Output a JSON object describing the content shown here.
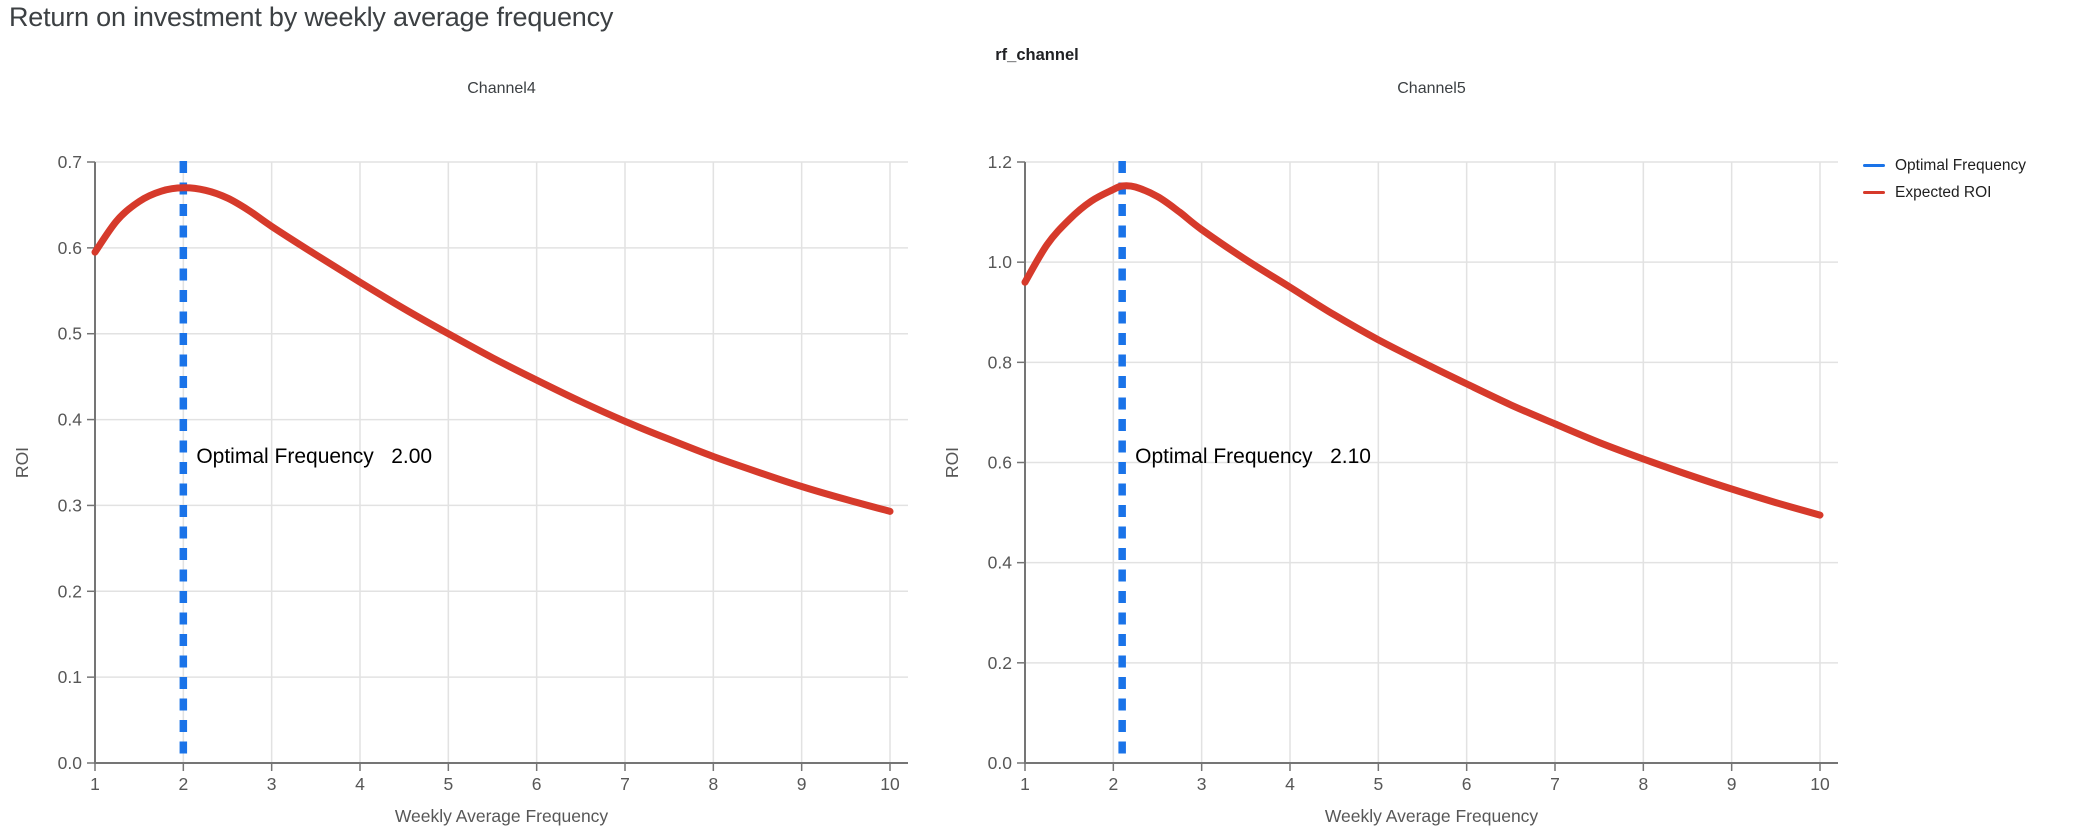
{
  "page": {
    "title": "Return on investment by weekly average frequency",
    "figure_title": "rf_channel"
  },
  "colors": {
    "expected_roi": "#d63a2b",
    "optimal_frequency": "#1a73e8",
    "grid": "#e2e2e2",
    "axis": "#757575",
    "tick_label": "#575757",
    "axis_title": "#575757",
    "panel_title": "#3c4043",
    "page_title": "#3c4043",
    "annotation": "#000000"
  },
  "legend": {
    "items": [
      {
        "label": "Optimal Frequency",
        "color": "#1a73e8"
      },
      {
        "label": "Expected ROI",
        "color": "#d63a2b"
      }
    ]
  },
  "chart_data": [
    {
      "type": "line",
      "title": "Channel4",
      "xlabel": "Weekly Average Frequency",
      "ylabel": "ROI",
      "xlim": [
        1,
        10
      ],
      "ylim": [
        0,
        0.7
      ],
      "x_ticks": [
        1,
        2,
        3,
        4,
        5,
        6,
        7,
        8,
        9,
        10
      ],
      "y_ticks": [
        0,
        0.1,
        0.2,
        0.3,
        0.4,
        0.5,
        0.6,
        0.7
      ],
      "grid": true,
      "optimal_frequency": 2.0,
      "annotation": {
        "label": "Optimal Frequency",
        "value": "2.00"
      },
      "series": [
        {
          "name": "Expected ROI",
          "x": [
            1,
            1.25,
            1.5,
            1.75,
            2,
            2.25,
            2.5,
            2.75,
            3,
            3.5,
            4,
            4.5,
            5,
            5.5,
            6,
            6.5,
            7,
            7.5,
            8,
            8.5,
            9,
            9.5,
            10
          ],
          "y": [
            0.595,
            0.632,
            0.654,
            0.666,
            0.67,
            0.667,
            0.658,
            0.643,
            0.625,
            0.592,
            0.56,
            0.529,
            0.5,
            0.472,
            0.446,
            0.421,
            0.398,
            0.377,
            0.357,
            0.339,
            0.322,
            0.307,
            0.293
          ]
        }
      ]
    },
    {
      "type": "line",
      "title": "Channel5",
      "xlabel": "Weekly Average Frequency",
      "ylabel": "ROI",
      "xlim": [
        1,
        10
      ],
      "ylim": [
        0,
        1.2
      ],
      "x_ticks": [
        1,
        2,
        3,
        4,
        5,
        6,
        7,
        8,
        9,
        10
      ],
      "y_ticks": [
        0,
        0.2,
        0.4,
        0.6,
        0.8,
        1.0,
        1.2
      ],
      "grid": true,
      "optimal_frequency": 2.1,
      "annotation": {
        "label": "Optimal Frequency",
        "value": "2.10"
      },
      "series": [
        {
          "name": "Expected ROI",
          "x": [
            1,
            1.25,
            1.5,
            1.75,
            2,
            2.1,
            2.25,
            2.5,
            2.75,
            3,
            3.5,
            4,
            4.5,
            5,
            5.5,
            6,
            6.5,
            7,
            7.5,
            8,
            8.5,
            9,
            9.5,
            10
          ],
          "y": [
            0.96,
            1.035,
            1.085,
            1.122,
            1.145,
            1.152,
            1.15,
            1.131,
            1.1,
            1.065,
            1.005,
            0.95,
            0.895,
            0.845,
            0.8,
            0.757,
            0.715,
            0.677,
            0.64,
            0.607,
            0.576,
            0.547,
            0.52,
            0.495
          ]
        }
      ]
    }
  ]
}
